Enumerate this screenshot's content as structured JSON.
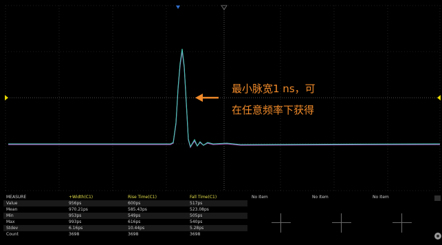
{
  "annotation": {
    "line1": "最小脉宽1 ns，可",
    "line2": "在任意频率下获得"
  },
  "colors": {
    "background": "#000000",
    "grid": "#3c3c3c",
    "waveform_cyan": "#46c8b4",
    "waveform_magenta": "#b060c0",
    "annotation": "#f08a2a",
    "header": "#e4e04a",
    "trigger_marker": "#e8d800",
    "channel_marker": "#3070d0"
  },
  "measure": {
    "title": "MEASURE",
    "columns": [
      "+Width(C1)",
      "Rise Time(C1)",
      "Fall Time(C1)"
    ],
    "rows": [
      {
        "label": "Value",
        "values": [
          "956ps",
          "600ps",
          "517ps"
        ]
      },
      {
        "label": "Mean",
        "values": [
          "970.21ps",
          "585.43ps",
          "523.08ps"
        ]
      },
      {
        "label": "Min",
        "values": [
          "953ps",
          "549ps",
          "505ps"
        ]
      },
      {
        "label": "Max",
        "values": [
          "993ps",
          "616ps",
          "540ps"
        ]
      },
      {
        "label": "Stdev",
        "values": [
          "6.16ps",
          "10.44ps",
          "5.28ps"
        ]
      },
      {
        "label": "Count",
        "values": [
          "3698",
          "3698",
          "3698"
        ]
      }
    ],
    "empty_slots": [
      "No Item",
      "No Item",
      "No Item"
    ]
  }
}
